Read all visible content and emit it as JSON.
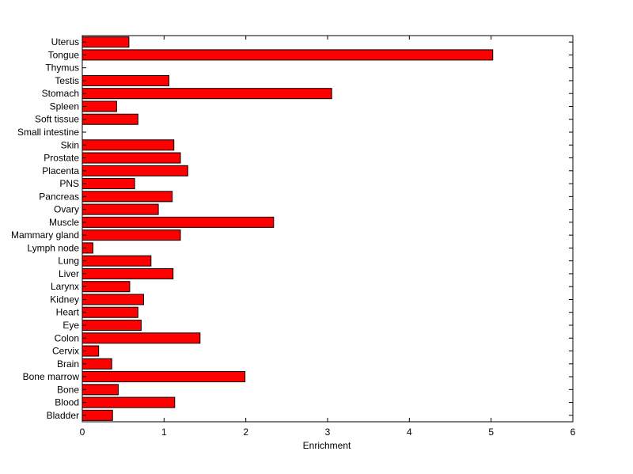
{
  "chart_data": {
    "type": "bar",
    "orientation": "horizontal",
    "title": "",
    "xlabel": "Enrichment",
    "ylabel": "",
    "xlim": [
      0,
      6
    ],
    "xticks": [
      "0",
      "1",
      "2",
      "3",
      "4",
      "5",
      "6"
    ],
    "grid": false,
    "legend": "none",
    "bar_color": "#ff0000",
    "categories": [
      "Uterus",
      "Tongue",
      "Thymus",
      "Testis",
      "Stomach",
      "Spleen",
      "Soft tissue",
      "Small intestine",
      "Skin",
      "Prostate",
      "Placenta",
      "PNS",
      "Pancreas",
      "Ovary",
      "Muscle",
      "Mammary gland",
      "Lymph node",
      "Lung",
      "Liver",
      "Larynx",
      "Kidney",
      "Heart",
      "Eye",
      "Colon",
      "Cervix",
      "Brain",
      "Bone marrow",
      "Bone",
      "Blood",
      "Bladder"
    ],
    "values": [
      0.57,
      5.02,
      0,
      1.06,
      3.05,
      0.42,
      0.68,
      0,
      1.12,
      1.2,
      1.29,
      0.64,
      1.1,
      0.93,
      2.34,
      1.2,
      0.13,
      0.84,
      1.11,
      0.58,
      0.75,
      0.68,
      0.72,
      1.44,
      0.2,
      0.36,
      1.99,
      0.44,
      1.13,
      0.37
    ]
  }
}
